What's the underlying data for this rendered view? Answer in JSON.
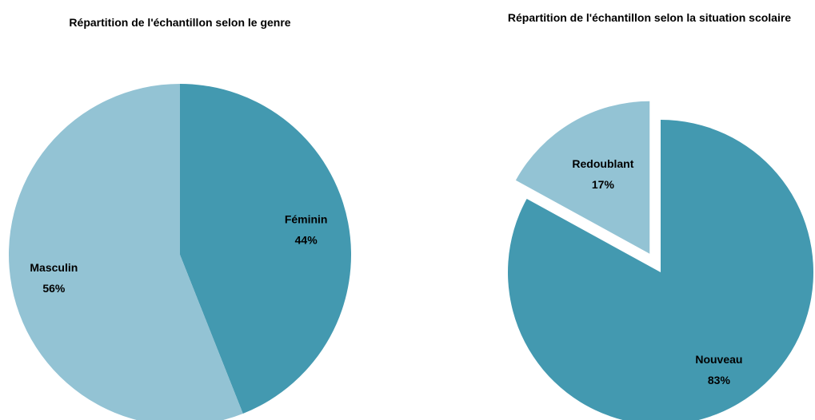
{
  "chart_data": [
    {
      "type": "pie",
      "title": "Répartition de l'échantillon selon le genre",
      "categories": [
        "Féminin",
        "Masculin"
      ],
      "values": [
        44,
        56
      ],
      "value_labels": [
        "44%",
        "56%"
      ],
      "colors": [
        "#4399b0",
        "#93c3d4"
      ]
    },
    {
      "type": "pie",
      "title": "Répartition de l'échantillon selon la situation scolaire",
      "categories": [
        "Nouveau",
        "Redoublant"
      ],
      "values": [
        83,
        17
      ],
      "value_labels": [
        "83%",
        "17%"
      ],
      "colors": [
        "#4399b0",
        "#93c3d4"
      ],
      "exploded": [
        "Redoublant"
      ]
    }
  ]
}
